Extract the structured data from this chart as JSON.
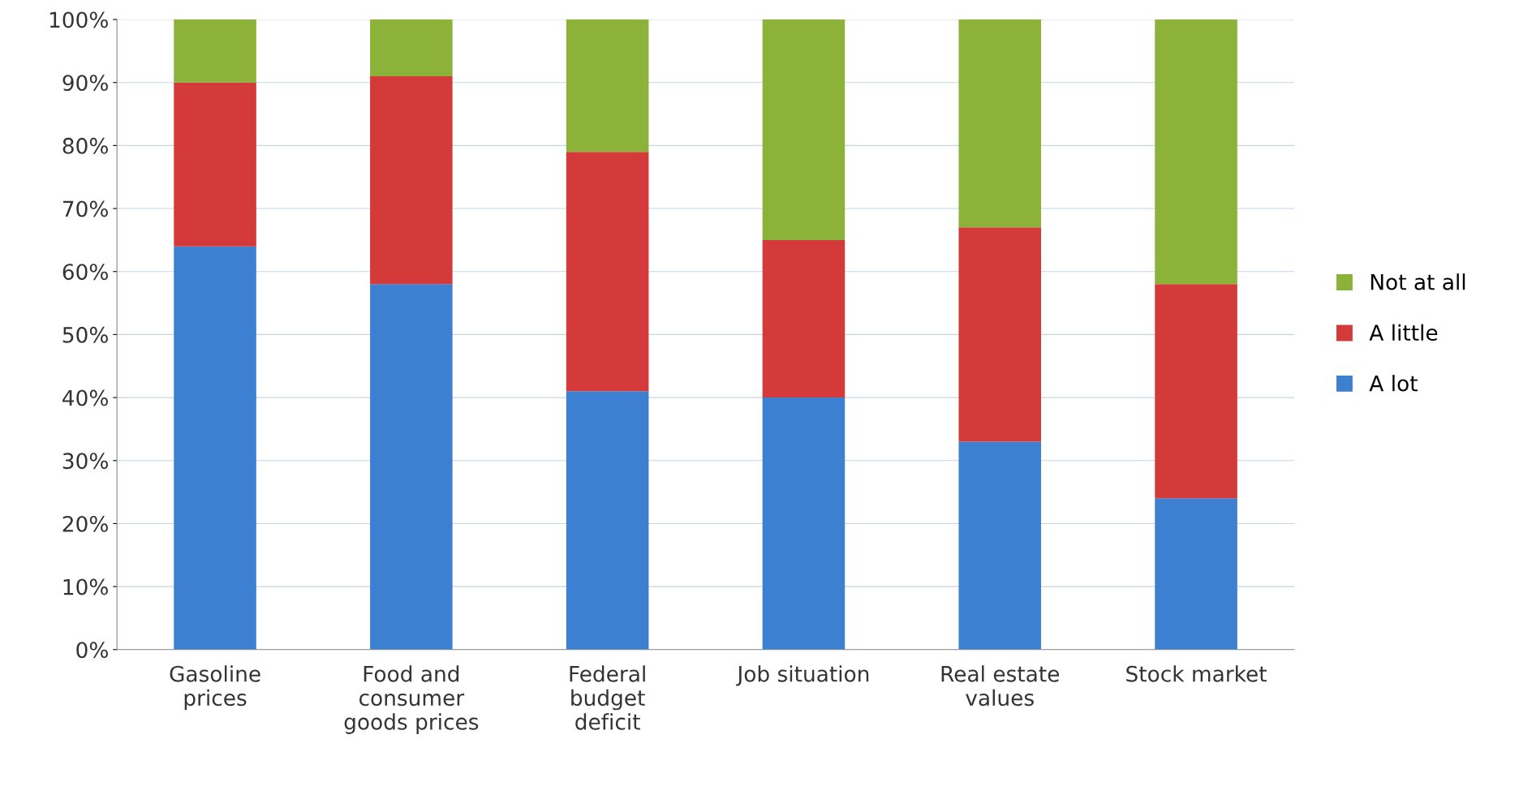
{
  "chart_data": {
    "type": "bar",
    "stacked": true,
    "categories": [
      "Gasoline\nprices",
      "Food and\nconsumer\ngoods prices",
      "Federal\nbudget\ndeficit",
      "Job situation",
      "Real estate\nvalues",
      "Stock market"
    ],
    "series": [
      {
        "name": "A lot",
        "color": "#3d7fd0",
        "values": [
          64,
          58,
          41,
          40,
          33,
          24
        ]
      },
      {
        "name": "A little",
        "color": "#d43a3a",
        "values": [
          26,
          33,
          38,
          25,
          34,
          34
        ]
      },
      {
        "name": "Not at all",
        "color": "#8cb23a",
        "values": [
          10,
          9,
          21,
          35,
          33,
          42
        ]
      }
    ],
    "ylim": [
      0,
      100
    ],
    "yticks": [
      {
        "value": 0,
        "label": "0%"
      },
      {
        "value": 10,
        "label": "10%"
      },
      {
        "value": 20,
        "label": "20%"
      },
      {
        "value": 30,
        "label": "30%"
      },
      {
        "value": 40,
        "label": "40%"
      },
      {
        "value": 50,
        "label": "50%"
      },
      {
        "value": 60,
        "label": "60%"
      },
      {
        "value": 70,
        "label": "70%"
      },
      {
        "value": 80,
        "label": "80%"
      },
      {
        "value": 90,
        "label": "90%"
      },
      {
        "value": 100,
        "label": "100%"
      }
    ],
    "grid": "y",
    "legend": "right"
  }
}
